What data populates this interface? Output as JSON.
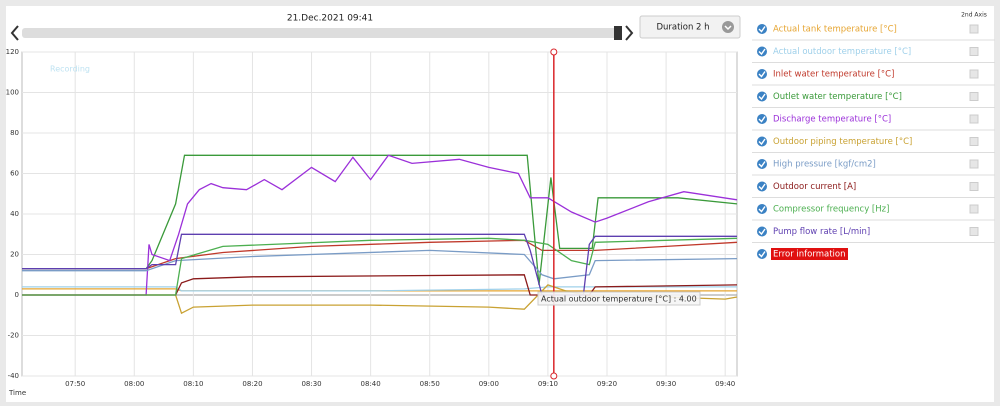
{
  "header": {
    "timestamp": "21.Dec.2021 09:41",
    "duration": "Duration 2 h"
  },
  "legend_panel": {
    "axis_header": "2nd Axis",
    "extra_entry": "Error information"
  },
  "chart_data": {
    "type": "line",
    "watermark": "Recording",
    "xlabel": "Time",
    "tooltip": "Actual outdoor temperature [°C] : 4.00",
    "cursor_x": 551,
    "xlim": [
      461,
      582
    ],
    "ylim": [
      -40,
      120
    ],
    "xticks": [
      {
        "value": 470,
        "label": "07:50"
      },
      {
        "value": 480,
        "label": "08:00"
      },
      {
        "value": 490,
        "label": "08:10"
      },
      {
        "value": 500,
        "label": "08:20"
      },
      {
        "value": 510,
        "label": "08:30"
      },
      {
        "value": 520,
        "label": "08:40"
      },
      {
        "value": 530,
        "label": "08:50"
      },
      {
        "value": 540,
        "label": "09:00"
      },
      {
        "value": 550,
        "label": "09:10"
      },
      {
        "value": 560,
        "label": "09:20"
      },
      {
        "value": 570,
        "label": "09:30"
      },
      {
        "value": 580,
        "label": "09:40"
      }
    ],
    "yticks": [
      -40,
      -20,
      0,
      20,
      40,
      60,
      80,
      100,
      120
    ],
    "grid": true,
    "series": [
      {
        "name": "Actual tank temperature [°C]",
        "color": "#e6a532",
        "x": [
          461,
          487,
          488,
          546,
          550,
          582
        ],
        "values": [
          3,
          3,
          2,
          2,
          2,
          2
        ]
      },
      {
        "name": "Actual outdoor temperature [°C]",
        "color": "#9fd0ea",
        "x": [
          461,
          487,
          488,
          520,
          546,
          550,
          560,
          582
        ],
        "values": [
          4,
          4,
          2,
          2,
          3,
          4,
          4,
          4
        ]
      },
      {
        "name": "Inlet water temperature [°C]",
        "color": "#c0392b",
        "x": [
          461,
          482,
          487,
          495,
          510,
          530,
          546,
          549,
          558,
          570,
          582
        ],
        "values": [
          13,
          13,
          18,
          21,
          24,
          26,
          27,
          22,
          22,
          24,
          26
        ]
      },
      {
        "name": "Outlet water temperature [°C]",
        "color": "#3a9a3a",
        "x": [
          461,
          482,
          483,
          487,
          488.5,
          546.5,
          548.5,
          550.5,
          552,
          557.5,
          558.5,
          572,
          582
        ],
        "values": [
          13,
          13,
          17,
          45,
          69,
          69,
          5,
          58,
          23,
          23,
          48,
          48,
          45
        ]
      },
      {
        "name": "Discharge temperature [°C]",
        "color": "#9b30d9",
        "x": [
          461,
          482,
          482.5,
          483,
          486,
          487.5,
          489,
          491,
          493,
          495,
          499,
          502,
          505,
          510,
          514,
          517,
          520,
          523,
          527,
          535,
          540,
          545,
          547,
          550,
          554,
          558,
          560,
          567,
          573,
          582
        ],
        "values": [
          0,
          0,
          25,
          20,
          17,
          30,
          45,
          52,
          55,
          53,
          52,
          57,
          52,
          63,
          56,
          68,
          57,
          69,
          65,
          67,
          63,
          60,
          48,
          48,
          41,
          36,
          38,
          46,
          51,
          47
        ]
      },
      {
        "name": "Outdoor piping temperature [°C]",
        "color": "#c9a233",
        "x": [
          461,
          487,
          488,
          490,
          500,
          520,
          540,
          546,
          550,
          553,
          558,
          570,
          580,
          582
        ],
        "values": [
          0,
          0,
          -9,
          -6,
          -5,
          -5,
          -6,
          -7,
          5,
          2,
          -1,
          -1,
          -2,
          -1
        ]
      },
      {
        "name": "High pressure [kgf/cm2]",
        "color": "#7a9cc6",
        "x": [
          461,
          482,
          487,
          500,
          530,
          546,
          549,
          551,
          557,
          558,
          582
        ],
        "values": [
          12,
          12,
          17,
          19,
          22,
          20,
          10,
          8,
          10,
          17,
          18
        ]
      },
      {
        "name": "Outdoor current [A]",
        "color": "#8b1a1a",
        "x": [
          461,
          487,
          488,
          490,
          500,
          546,
          547,
          551,
          557,
          558,
          582
        ],
        "values": [
          0,
          0,
          6,
          8,
          9,
          10,
          0,
          0,
          0,
          4,
          5
        ]
      },
      {
        "name": "Compressor frequency [Hz]",
        "color": "#4caf50",
        "x": [
          461,
          487,
          488,
          495,
          520,
          540,
          546,
          550,
          554,
          557,
          558,
          582
        ],
        "values": [
          0,
          0,
          18,
          24,
          27,
          28,
          27,
          25,
          17,
          15,
          26,
          28
        ]
      },
      {
        "name": "Pump flow rate [L/min]",
        "color": "#5e3fb0",
        "x": [
          461,
          482,
          483,
          487,
          488,
          546,
          547,
          549,
          552,
          556,
          557,
          558,
          582
        ],
        "values": [
          13,
          13,
          15,
          15,
          30,
          30,
          22,
          0,
          0,
          0,
          25,
          29,
          29
        ]
      }
    ]
  }
}
